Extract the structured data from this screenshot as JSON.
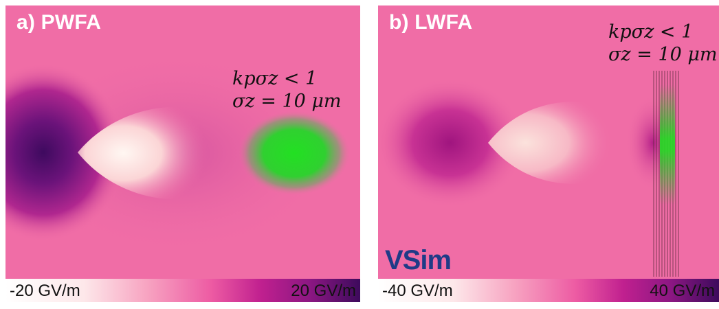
{
  "panels": [
    {
      "label": "a) PWFA",
      "eqn_line1": "kpσz < 1",
      "eqn_line2": "σz = 10 μm",
      "colorbar_min": "-20 GV/m",
      "colorbar_max": "20 GV/m"
    },
    {
      "label": "b) LWFA",
      "eqn_line1": "kpσz < 1",
      "eqn_line2": "σz = 10 μm",
      "colorbar_min": "-40 GV/m",
      "colorbar_max": "40 GV/m",
      "logo": "VSim"
    }
  ],
  "colors": {
    "background_field": "#f06da6",
    "bunch_green": "#22dd22",
    "dark_lobe": "#4a0a6a",
    "light_lobe": "#fff5f2",
    "vsim_blue": "#1f3b87"
  }
}
